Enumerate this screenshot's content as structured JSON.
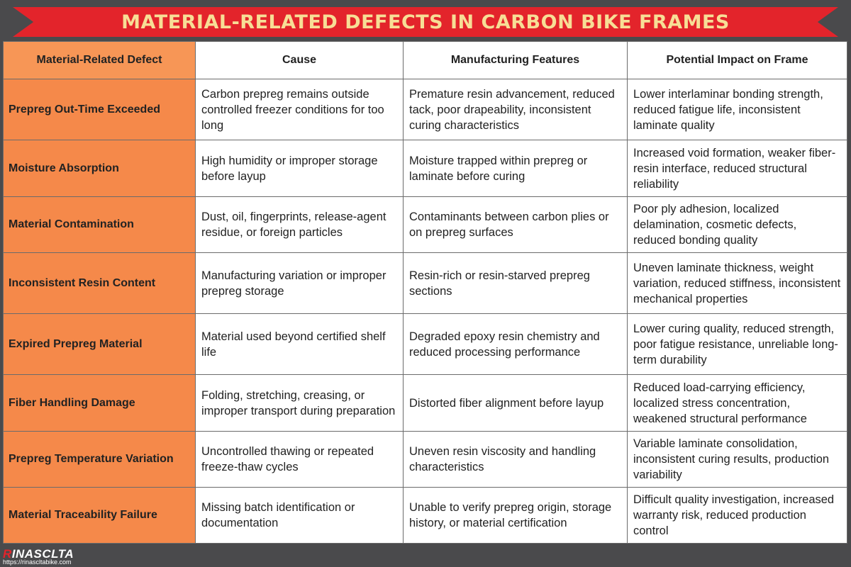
{
  "title": "MATERIAL-RELATED DEFECTS IN CARBON BIKE FRAMES",
  "columns": [
    "Material-Related Defect",
    "Cause",
    "Manufacturing Features",
    "Potential Impact on Frame"
  ],
  "rows": [
    {
      "defect": "Prepreg Out-Time Exceeded",
      "cause": "Carbon prepreg remains outside controlled freezer conditions for too long",
      "features": "Premature resin advancement, reduced tack, poor drapeability, inconsistent curing characteristics",
      "impact": "Lower interlaminar bonding strength, reduced fatigue life, inconsistent laminate quality"
    },
    {
      "defect": "Moisture Absorption",
      "cause": "High humidity or improper storage before layup",
      "features": "Moisture trapped within prepreg or laminate before curing",
      "impact": "Increased void formation, weaker fiber-resin interface, reduced structural reliability"
    },
    {
      "defect": "Material Contamination",
      "cause": "Dust, oil, fingerprints, release-agent residue, or foreign particles",
      "features": "Contaminants between carbon plies or on prepreg surfaces",
      "impact": "Poor ply adhesion, localized delamination, cosmetic defects, reduced bonding quality"
    },
    {
      "defect": "Inconsistent Resin Content",
      "cause": "Manufacturing variation or improper prepreg storage",
      "features": "Resin-rich or resin-starved prepreg sections",
      "impact": "Uneven laminate thickness, weight variation, reduced stiffness, inconsistent mechanical properties"
    },
    {
      "defect": "Expired Prepreg Material",
      "cause": "Material used beyond certified shelf life",
      "features": "Degraded epoxy resin chemistry and reduced processing performance",
      "impact": "Lower curing quality, reduced strength, poor fatigue resistance, unreliable long-term durability"
    },
    {
      "defect": "Fiber Handling Damage",
      "cause": "Folding, stretching, creasing, or improper transport during preparation",
      "features": "Distorted fiber alignment before layup",
      "impact": "Reduced load-carrying efficiency, localized stress concentration, weakened structural performance"
    },
    {
      "defect": "Prepreg Temperature Variation",
      "cause": "Uncontrolled thawing or repeated freeze-thaw cycles",
      "features": "Uneven resin viscosity and handling characteristics",
      "impact": "Variable laminate consolidation, inconsistent curing results, production variability"
    },
    {
      "defect": "Material Traceability Failure",
      "cause": "Missing batch identification or documentation",
      "features": "Unable to verify prepreg origin, storage history, or material certification",
      "impact": "Difficult quality investigation, increased warranty risk, reduced production control"
    }
  ],
  "footer": {
    "logo_first_letter": "R",
    "logo_rest": "INASCLTA",
    "url": "https://rinascltabike.com"
  },
  "colors": {
    "banner": "#e3242b",
    "title_text": "#f7de96",
    "defect_column": "#f5894a",
    "background": "#4a4a4c"
  }
}
